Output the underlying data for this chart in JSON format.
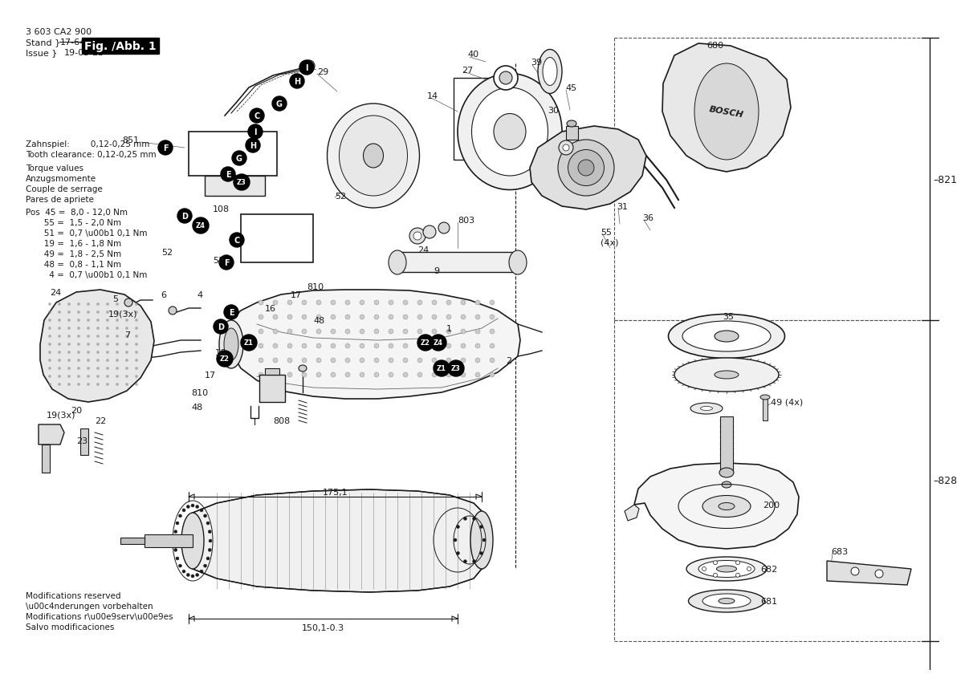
{
  "bg_color": "#ffffff",
  "fig_width": 11.69,
  "fig_height": 8.26,
  "dpi": 100,
  "lc": "#1a1a1a",
  "title_lines": [
    "3 603 CA2 900",
    "Stand \\u007d  17-64",
    "Issue \\u007d  19-03-25"
  ],
  "fig_label": "Fig. /Abb. 1",
  "zahnspiel": [
    "Zahnspiel:        0,12-0,25 mm",
    "Tooth clearance: 0,12-0,25 mm"
  ],
  "torque_header": [
    "Torque values",
    "Anzugsmomente",
    "Couple de serrage",
    "Pares de apriete"
  ],
  "torque_values": [
    "Pos  45 =  8,0 - 12,0 Nm",
    "       55 =  1,5 - 2,0 Nm",
    "       51 =  0,7 \\u00b1 0,1 Nm",
    "       19 =  1,6 - 1,8 Nm",
    "       49 =  1,8 - 2,5 Nm",
    "       48 =  0,8 - 1,1 Nm",
    "         4 =  0,7 \\u00b1 0,1 Nm"
  ],
  "footer": [
    "Modifications reserved",
    "\\u00c4nderungen vorbehalten",
    "Modifications r\\u00e9serv\\u00e9es",
    "Salvo modificaciones"
  ],
  "dim_175": "175,1",
  "dim_150": "150,1-0.3"
}
